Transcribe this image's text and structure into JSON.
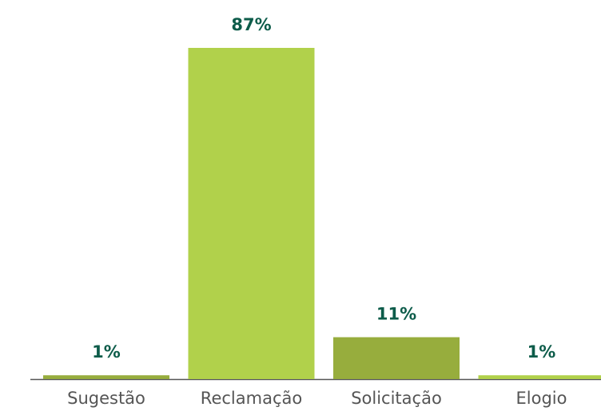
{
  "chart_data": {
    "type": "bar",
    "categories": [
      "Sugestão",
      "Reclamação",
      "Solicitação",
      "Elogio"
    ],
    "values": [
      1,
      87,
      11,
      1
    ],
    "value_labels": [
      "1%",
      "87%",
      "11%",
      "1%"
    ],
    "colors": [
      "#97ad3d",
      "#b1d14b",
      "#97ad3d",
      "#b1d14b"
    ],
    "ylim": [
      0,
      87
    ]
  }
}
